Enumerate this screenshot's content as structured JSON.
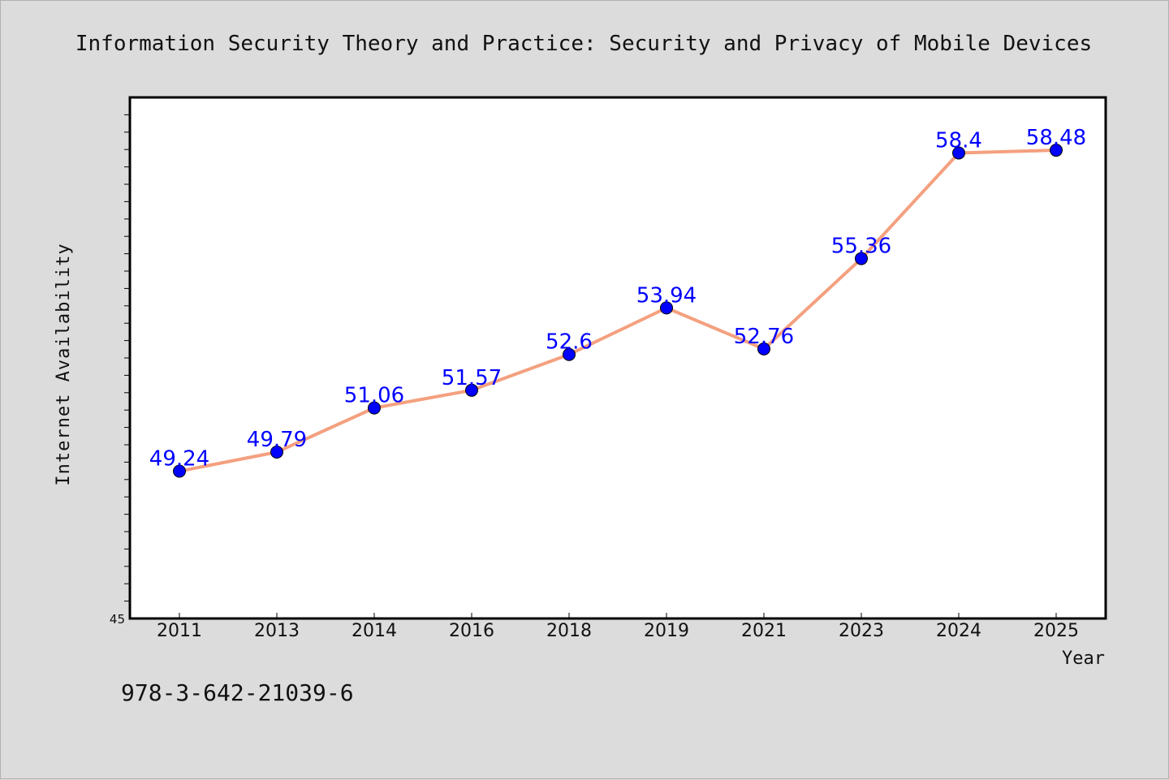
{
  "chart_data": {
    "type": "line",
    "title": "Information Security Theory and Practice: Security and Privacy of Mobile Devices",
    "xlabel": "Year",
    "ylabel": "Internet Availability",
    "categories": [
      "2011",
      "2013",
      "2014",
      "2016",
      "2018",
      "2019",
      "2021",
      "2023",
      "2024",
      "2025"
    ],
    "series": [
      {
        "values": [
          49.24,
          49.79,
          51.06,
          51.57,
          52.6,
          53.94,
          52.76,
          55.36,
          58.4,
          58.48
        ],
        "labels": [
          "49.24",
          "49.79",
          "51.06",
          "51.57",
          "52.6",
          "53.94",
          "52.76",
          "55.36",
          "58.4",
          "58.48"
        ],
        "line_color": "#f4a07f",
        "marker_color": "#0000ff"
      }
    ],
    "ylim": [
      45,
      60
    ],
    "yticks": [
      {
        "value": 45,
        "label": "45"
      }
    ],
    "grid": false,
    "legend": "none"
  },
  "annotation": "978-3-642-21039-6",
  "colors": {
    "background": "#dcdcdc",
    "plot_background": "#ffffff",
    "data_label": "#0000ff"
  }
}
